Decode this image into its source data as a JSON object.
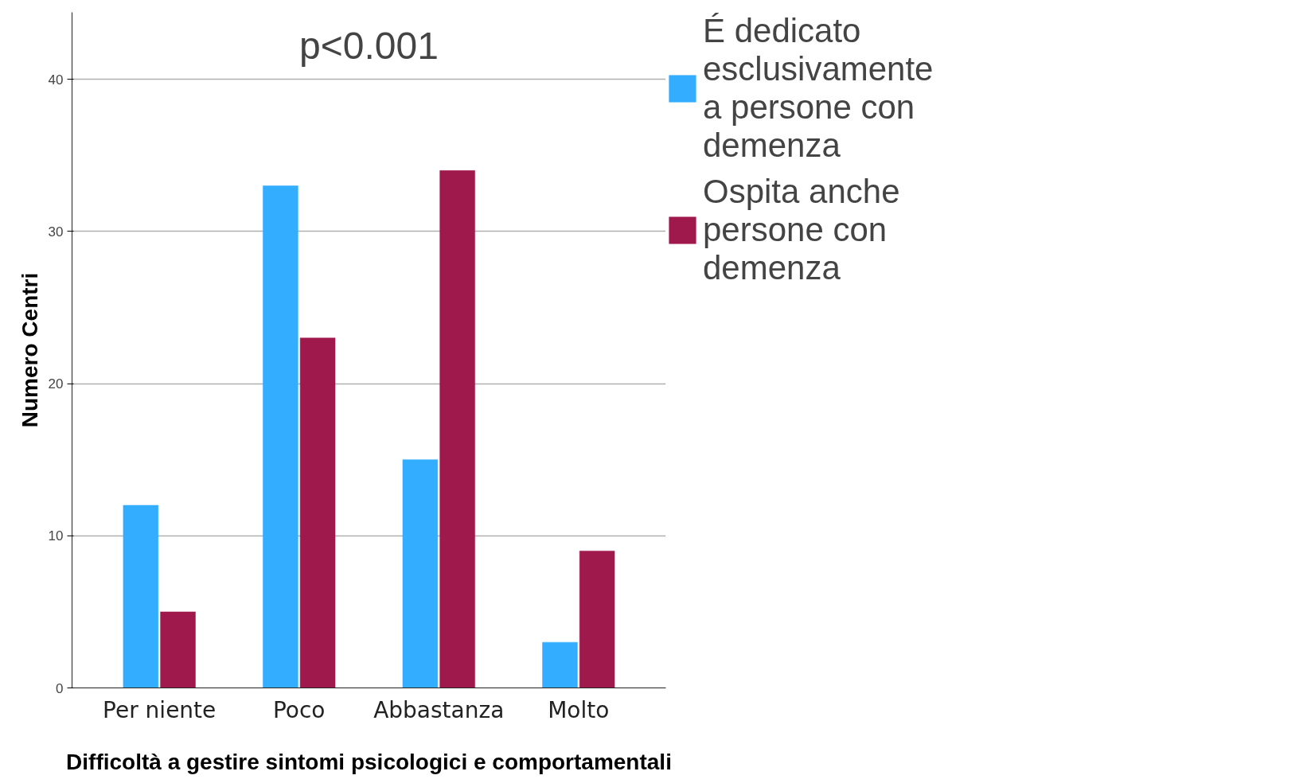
{
  "chart_data": {
    "type": "bar",
    "xlabel": "Difficoltà a gestire sintomi psicologici e comportamentali",
    "ylabel": "Numero Centri",
    "categories": [
      "Per niente",
      "Poco",
      "Abbastanza",
      "Molto"
    ],
    "series": [
      {
        "name": "É dedicato esclusivamente a persone con demenza",
        "color": "#33adff",
        "values": [
          12,
          33,
          15,
          3
        ]
      },
      {
        "name": "Ospita anche persone con demenza",
        "color": "#a0194c",
        "values": [
          5,
          23,
          34,
          9
        ]
      }
    ],
    "ylim": [
      0,
      44.4
    ],
    "yticks": [
      0,
      10,
      20,
      30,
      40
    ],
    "grid": "y",
    "legend": "right",
    "annotations": [
      "p<0.001"
    ]
  }
}
